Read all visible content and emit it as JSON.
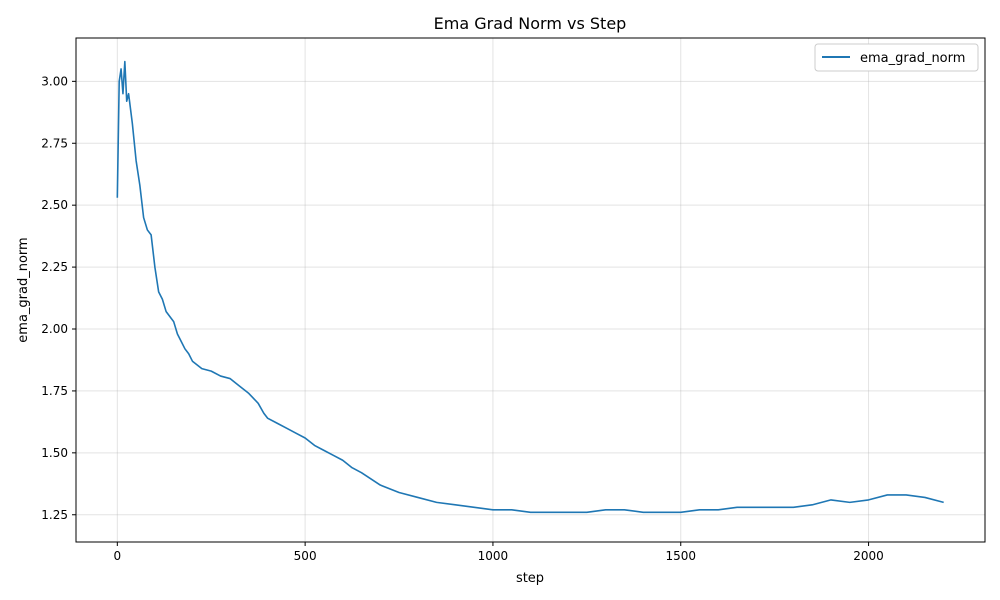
{
  "chart_data": {
    "type": "line",
    "title": "Ema Grad Norm vs Step",
    "xlabel": "step",
    "ylabel": "ema_grad_norm",
    "xlim": [
      -110,
      2310
    ],
    "ylim": [
      1.14,
      3.175
    ],
    "xticks": [
      0,
      500,
      1000,
      1500,
      2000
    ],
    "xtick_labels": [
      "0",
      "500",
      "1000",
      "1500",
      "2000"
    ],
    "yticks": [
      1.25,
      1.5,
      1.75,
      2.0,
      2.25,
      2.5,
      2.75,
      3.0
    ],
    "ytick_labels": [
      "1.25",
      "1.50",
      "1.75",
      "2.00",
      "2.25",
      "2.50",
      "2.75",
      "3.00"
    ],
    "grid": true,
    "legend_position": "top-right",
    "line_color": "#1f77b4",
    "series": [
      {
        "name": "ema_grad_norm",
        "x": [
          0,
          5,
          10,
          15,
          20,
          25,
          30,
          40,
          50,
          60,
          70,
          80,
          90,
          100,
          110,
          120,
          130,
          140,
          150,
          160,
          170,
          180,
          190,
          200,
          225,
          250,
          275,
          300,
          325,
          350,
          375,
          390,
          400,
          425,
          450,
          475,
          500,
          525,
          550,
          575,
          600,
          625,
          650,
          700,
          750,
          800,
          850,
          900,
          950,
          1000,
          1050,
          1100,
          1150,
          1200,
          1250,
          1300,
          1350,
          1400,
          1450,
          1500,
          1550,
          1600,
          1650,
          1700,
          1750,
          1800,
          1850,
          1900,
          1950,
          2000,
          2050,
          2100,
          2150,
          2200
        ],
        "y": [
          2.53,
          3.0,
          3.05,
          2.95,
          3.08,
          2.92,
          2.95,
          2.83,
          2.68,
          2.58,
          2.45,
          2.4,
          2.38,
          2.25,
          2.15,
          2.12,
          2.07,
          2.05,
          2.03,
          1.98,
          1.95,
          1.92,
          1.9,
          1.87,
          1.84,
          1.83,
          1.81,
          1.8,
          1.77,
          1.74,
          1.7,
          1.66,
          1.64,
          1.62,
          1.6,
          1.58,
          1.56,
          1.53,
          1.51,
          1.49,
          1.47,
          1.44,
          1.42,
          1.37,
          1.34,
          1.32,
          1.3,
          1.29,
          1.28,
          1.27,
          1.27,
          1.26,
          1.26,
          1.26,
          1.26,
          1.27,
          1.27,
          1.26,
          1.26,
          1.26,
          1.27,
          1.27,
          1.28,
          1.28,
          1.28,
          1.28,
          1.29,
          1.31,
          1.3,
          1.31,
          1.33,
          1.33,
          1.32,
          1.3
        ]
      }
    ]
  }
}
